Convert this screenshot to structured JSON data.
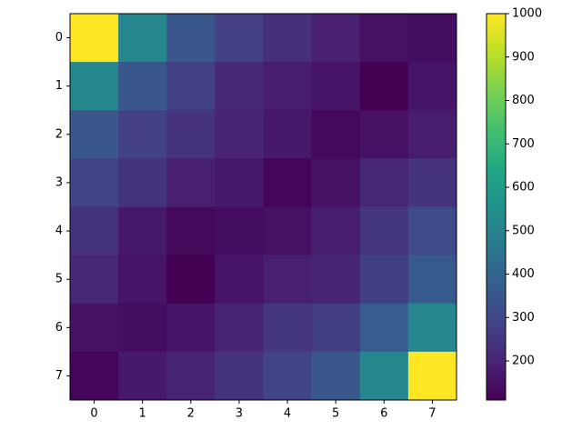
{
  "chart_data": {
    "type": "heatmap",
    "xticks": [
      0,
      1,
      2,
      3,
      4,
      5,
      6,
      7
    ],
    "yticks": [
      0,
      1,
      2,
      3,
      4,
      5,
      6,
      7
    ],
    "values": [
      [
        1000,
        520,
        350,
        280,
        230,
        190,
        150,
        140
      ],
      [
        520,
        350,
        280,
        210,
        180,
        160,
        110,
        160
      ],
      [
        350,
        280,
        240,
        200,
        170,
        130,
        150,
        180
      ],
      [
        290,
        240,
        190,
        170,
        120,
        150,
        210,
        240
      ],
      [
        240,
        170,
        130,
        140,
        150,
        180,
        250,
        310
      ],
      [
        210,
        160,
        110,
        160,
        190,
        200,
        270,
        360
      ],
      [
        150,
        140,
        160,
        200,
        250,
        270,
        370,
        520
      ],
      [
        120,
        170,
        200,
        240,
        290,
        350,
        520,
        1000
      ]
    ],
    "colormap": "viridis",
    "clim": [
      110,
      1000
    ],
    "cticks": [
      200,
      300,
      400,
      500,
      600,
      700,
      800,
      900,
      1000
    ]
  }
}
